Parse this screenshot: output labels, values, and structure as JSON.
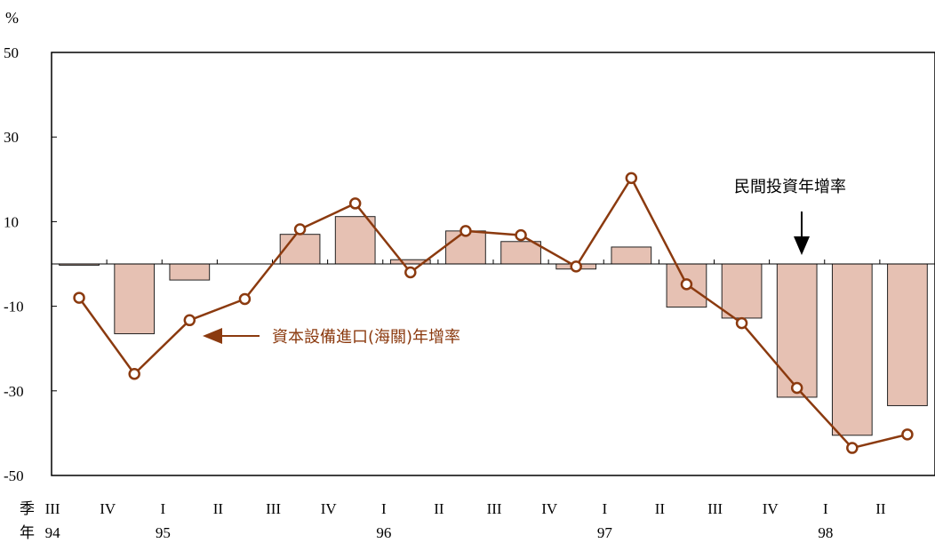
{
  "chart_data": {
    "type": "bar+line",
    "unit_label": "%",
    "ylim": [
      -50,
      50
    ],
    "yticks": [
      50,
      30,
      10,
      -10,
      -30,
      -50
    ],
    "categories": [
      "III",
      "IV",
      "I",
      "II",
      "III",
      "IV",
      "I",
      "II",
      "III",
      "IV",
      "I",
      "II",
      "III",
      "IV",
      "I",
      "II"
    ],
    "years": [
      {
        "label": "94",
        "index": 0
      },
      {
        "label": "95",
        "index": 2
      },
      {
        "label": "96",
        "index": 6
      },
      {
        "label": "97",
        "index": 10
      },
      {
        "label": "98",
        "index": 14
      }
    ],
    "x_axis_labels": {
      "quarter": "季",
      "year": "年"
    },
    "series": [
      {
        "name": "民間投資年增率",
        "type": "bar",
        "values": [
          -0.3,
          -16.5,
          -3.8,
          0,
          7.0,
          11.2,
          1.0,
          7.8,
          5.3,
          -1.2,
          4.0,
          -10.2,
          -12.8,
          -31.5,
          -40.5,
          -33.5
        ]
      },
      {
        "name": "資本設備進口(海關)年增率",
        "type": "line",
        "values": [
          -8.0,
          -26.0,
          -13.3,
          -8.3,
          8.2,
          14.3,
          -2.0,
          7.8,
          6.8,
          -0.6,
          20.3,
          -4.8,
          -14.0,
          -29.3,
          -43.5,
          -40.3
        ]
      }
    ],
    "annotations": {
      "bar_label": "民間投資年增率",
      "line_label": "資本設備進口(海關)年增率"
    },
    "colors": {
      "bar_fill": "#e6c1b3",
      "bar_stroke": "#222222",
      "line": "#8b3a0f",
      "marker_fill": "#ffffff"
    },
    "grid": false
  }
}
